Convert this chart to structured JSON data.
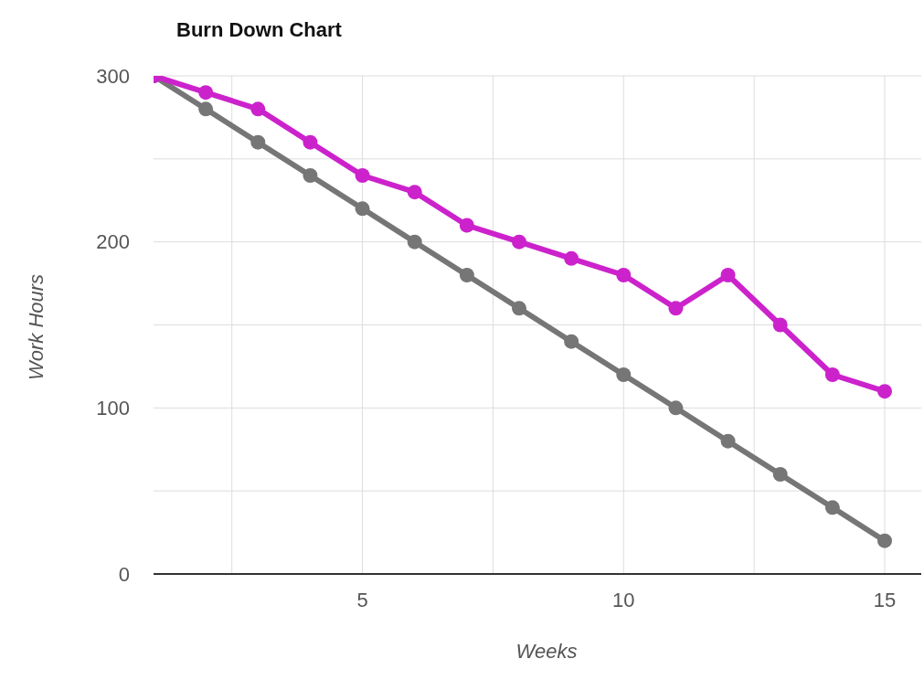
{
  "chart_data": {
    "type": "line",
    "title": "Burn Down Chart",
    "xlabel": "Weeks",
    "ylabel": "Work Hours",
    "x": [
      1,
      2,
      3,
      4,
      5,
      6,
      7,
      8,
      9,
      10,
      11,
      12,
      13,
      14,
      15
    ],
    "series": [
      {
        "color": "#767676",
        "values": [
          300,
          280,
          260,
          240,
          220,
          200,
          180,
          160,
          140,
          120,
          100,
          80,
          60,
          40,
          20
        ]
      },
      {
        "color": "#cc22cc",
        "values": [
          300,
          290,
          280,
          260,
          240,
          230,
          210,
          200,
          190,
          180,
          160,
          180,
          150,
          120,
          110
        ]
      }
    ],
    "xlim": [
      1,
      15.7
    ],
    "xticks": [
      {
        "value": 2.5,
        "label": null
      },
      5,
      {
        "value": 7.5,
        "label": null
      },
      10,
      {
        "value": 12.5,
        "label": null
      },
      15
    ],
    "ylim": [
      0,
      300
    ],
    "yticks": [
      0,
      {
        "value": 50,
        "label": null
      },
      100,
      {
        "value": 150,
        "label": null
      },
      200,
      {
        "value": 250,
        "label": null
      },
      300
    ],
    "grid": true,
    "marker": "circle",
    "line_style": "solid",
    "legend": false
  }
}
